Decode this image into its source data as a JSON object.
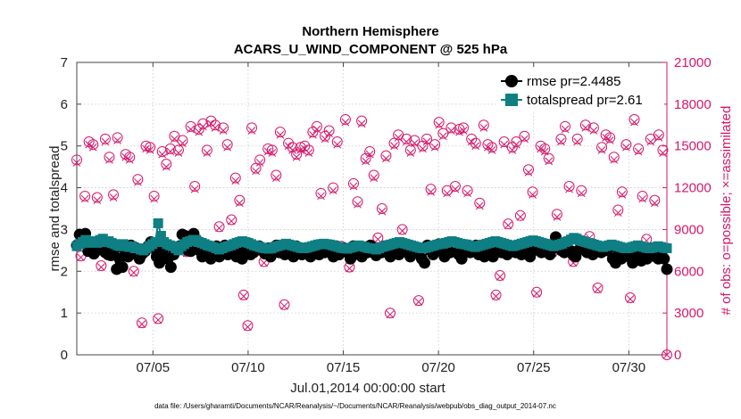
{
  "chart_data": {
    "type": "line",
    "title": "Northern Hemisphere",
    "subtitle": "ACARS_U_WIND_COMPONENT @ 525 hPa",
    "xlabel": "Jul.01,2014 00:00:00 start",
    "ylabel_left": "rmse and totalspread",
    "ylabel_right": "# of obs: o=possible; ×=assimilated",
    "footnote": "data file: /Users/gharamti/Documents/NCAR/Reanalysis/~/Documents/NCAR/Reanalysis/webpub/obs_diag_output_2014-07.nc",
    "x_range_days": [
      1,
      32
    ],
    "ylim_left": [
      0,
      7
    ],
    "ylim_right": [
      0,
      21000
    ],
    "x_ticks": [
      {
        "day": 5,
        "label": "07/05"
      },
      {
        "day": 10,
        "label": "07/10"
      },
      {
        "day": 15,
        "label": "07/15"
      },
      {
        "day": 20,
        "label": "07/20"
      },
      {
        "day": 25,
        "label": "07/25"
      },
      {
        "day": 30,
        "label": "07/30"
      }
    ],
    "y_ticks_left": [
      "0",
      "1",
      "2",
      "3",
      "4",
      "5",
      "6",
      "7"
    ],
    "y_ticks_right": [
      "0",
      "3000",
      "6000",
      "9000",
      "12000",
      "15000",
      "18000",
      "21000"
    ],
    "legend": [
      {
        "name": "rmse pr=2.4485",
        "color": "#000000",
        "marker": "circle"
      },
      {
        "name": "totalspread pr=2.61",
        "color": "#0e7f82",
        "marker": "square"
      }
    ],
    "colors": {
      "rmse": "#000000",
      "spread": "#0e7f82",
      "obs": "#d6166a"
    },
    "rmse_values": [
      2.62,
      2.88,
      2.72,
      2.9,
      2.48,
      2.55,
      2.42,
      2.56,
      2.52,
      2.6,
      2.45,
      2.4,
      2.38,
      2.5,
      2.05,
      2.3,
      2.1,
      2.5,
      2.35,
      2.62,
      2.42,
      2.55,
      2.3,
      2.42,
      2.48,
      2.6,
      2.7,
      2.55,
      2.35,
      2.2,
      2.45,
      2.58,
      2.3,
      2.1,
      2.4,
      2.5,
      2.6,
      2.88,
      2.85,
      2.5,
      2.48,
      2.9,
      2.75,
      2.5,
      2.35,
      2.4,
      2.5,
      2.3,
      2.45,
      2.6,
      2.35,
      2.5,
      2.62,
      2.4,
      2.55,
      2.6,
      2.35,
      2.5,
      2.3,
      2.6,
      2.5,
      2.4,
      2.45,
      2.55,
      2.6,
      2.5,
      2.42,
      2.55,
      2.35,
      2.5,
      2.62,
      2.45,
      2.6,
      2.4,
      2.55,
      2.5,
      2.35,
      2.6,
      2.5,
      2.4,
      2.55,
      2.45,
      2.35,
      2.58,
      2.5,
      2.4,
      2.62,
      2.45,
      2.55,
      2.5,
      2.35,
      2.6,
      2.4,
      2.5,
      2.55,
      2.45,
      2.3,
      2.6,
      2.5,
      2.4,
      2.35,
      2.55,
      2.45,
      2.62,
      2.5,
      2.38,
      2.55,
      2.45,
      2.6,
      2.5,
      2.35,
      2.62,
      2.55,
      2.4,
      2.5,
      2.6,
      2.45,
      2.35,
      2.55,
      2.5,
      2.45,
      2.3,
      2.2,
      2.62,
      2.5,
      2.4,
      2.6,
      2.65,
      2.5,
      2.35,
      2.55,
      2.45,
      2.6,
      2.5,
      2.4,
      2.3,
      2.55,
      2.6,
      2.45,
      2.5,
      2.62,
      2.4,
      2.55,
      2.35,
      2.5,
      2.45,
      2.35,
      2.55,
      2.6,
      2.45,
      2.5,
      2.4,
      2.6,
      2.5,
      2.45,
      2.55,
      2.4,
      2.6,
      2.5,
      2.35,
      2.55,
      2.62,
      2.5,
      2.45,
      2.6,
      2.5,
      2.4,
      2.55,
      2.82,
      2.6,
      2.5,
      2.45,
      2.6,
      2.5,
      2.4,
      2.35,
      2.5,
      2.55,
      2.6,
      2.45,
      2.5,
      2.4,
      2.6,
      2.5,
      2.45,
      2.55,
      2.5,
      2.6,
      2.3,
      2.2,
      2.45,
      2.3,
      2.35,
      2.5,
      2.4,
      2.2,
      2.3,
      2.35,
      2.25,
      2.45,
      2.3,
      2.4,
      2.5,
      2.35,
      2.3,
      2.45,
      2.3,
      2.05
    ],
    "spread_values": [
      2.6,
      2.65,
      2.7,
      2.75,
      2.68,
      2.7,
      2.72,
      2.68,
      2.75,
      2.78,
      2.7,
      2.72,
      2.68,
      2.65,
      2.62,
      2.6,
      2.65,
      2.6,
      2.58,
      2.6,
      2.55,
      2.55,
      2.52,
      2.5,
      2.55,
      2.6,
      2.65,
      2.7,
      3.15,
      2.85,
      2.7,
      2.65,
      2.62,
      2.6,
      2.55,
      2.5,
      2.6,
      2.65,
      2.7,
      2.72,
      2.75,
      2.75,
      2.7,
      2.68,
      2.65,
      2.62,
      2.6,
      2.58,
      2.55,
      2.52,
      2.55,
      2.58,
      2.6,
      2.62,
      2.65,
      2.68,
      2.7,
      2.72,
      2.7,
      2.68,
      2.65,
      2.62,
      2.6,
      2.58,
      2.56,
      2.55,
      2.54,
      2.55,
      2.58,
      2.6,
      2.62,
      2.64,
      2.66,
      2.64,
      2.62,
      2.6,
      2.58,
      2.56,
      2.55,
      2.56,
      2.58,
      2.6,
      2.62,
      2.64,
      2.65,
      2.66,
      2.65,
      2.64,
      2.62,
      2.6,
      2.58,
      2.56,
      2.55,
      2.54,
      2.56,
      2.58,
      2.6,
      2.62,
      2.6,
      2.58,
      2.56,
      2.55,
      2.54,
      2.52,
      2.55,
      2.58,
      2.6,
      2.62,
      2.64,
      2.66,
      2.68,
      2.7,
      2.68,
      2.66,
      2.64,
      2.62,
      2.6,
      2.58,
      2.56,
      2.55,
      2.56,
      2.58,
      2.6,
      2.62,
      2.64,
      2.65,
      2.66,
      2.68,
      2.7,
      2.72,
      2.7,
      2.68,
      2.66,
      2.65,
      2.64,
      2.62,
      2.6,
      2.58,
      2.6,
      2.62,
      2.64,
      2.66,
      2.68,
      2.7,
      2.72,
      2.7,
      2.68,
      2.66,
      2.64,
      2.62,
      2.6,
      2.62,
      2.64,
      2.66,
      2.68,
      2.7,
      2.72,
      2.74,
      2.72,
      2.7,
      2.68,
      2.66,
      2.64,
      2.62,
      2.6,
      2.62,
      2.64,
      2.66,
      2.7,
      2.72,
      2.76,
      2.8,
      2.78,
      2.74,
      2.72,
      2.7,
      2.68,
      2.66,
      2.64,
      2.62,
      2.6,
      2.58,
      2.6,
      2.62,
      2.64,
      2.62,
      2.6,
      2.58,
      2.56,
      2.55,
      2.56,
      2.58,
      2.6,
      2.62,
      2.6,
      2.58,
      2.56,
      2.55,
      2.56,
      2.58,
      2.6,
      2.58,
      2.56,
      2.55
    ],
    "obs_possible": [
      14000,
      7100,
      11400,
      15300,
      15100,
      11300,
      6400,
      15500,
      14200,
      11500,
      15600,
      7500,
      14400,
      14200,
      6000,
      12600,
      2300,
      15000,
      14900,
      11400,
      2600,
      14600,
      13700,
      14800,
      15700,
      14700,
      15400,
      7400,
      16400,
      12100,
      16200,
      16600,
      14700,
      16800,
      16500,
      9200,
      16300,
      15100,
      9700,
      12700,
      11100,
      4300,
      2100,
      16300,
      13400,
      14000,
      6700,
      14800,
      14700,
      12900,
      16000,
      3600,
      15200,
      14900,
      14400,
      14900,
      15000,
      14700,
      16000,
      16400,
      11600,
      15700,
      16100,
      12000,
      15300,
      7800,
      16900,
      6300,
      12300,
      11000,
      16800,
      14100,
      14600,
      12900,
      8400,
      10500,
      14300,
      3000,
      15200,
      15800,
      9000,
      15500,
      14700,
      15400,
      3900,
      15000,
      15500,
      11900,
      15100,
      16700,
      15900,
      11800,
      16300,
      12100,
      16200,
      16300,
      11800,
      15500,
      15200,
      10900,
      16500,
      15100,
      14900,
      4300,
      5700,
      15300,
      9400,
      14900,
      15300,
      10000,
      15700,
      13300,
      11700,
      4500,
      15000,
      14800,
      14100,
      7400,
      10100,
      15500,
      16400,
      12100,
      6700,
      15500,
      11800,
      16500,
      8500,
      16300,
      4800,
      14900,
      15800,
      15600,
      14200,
      10400,
      11700,
      15100,
      4100,
      16900,
      14800,
      11400,
      8300,
      15500,
      11100,
      15800,
      14700,
      0
    ],
    "obs_assimilated": [
      13800,
      7000,
      11200,
      15100,
      14900,
      11100,
      6300,
      15300,
      14000,
      11300,
      15400,
      7400,
      14200,
      14000,
      5900,
      12400,
      2200,
      14800,
      14700,
      11200,
      2500,
      14400,
      13500,
      14600,
      15500,
      14500,
      15200,
      7300,
      16200,
      11900,
      16000,
      16400,
      14500,
      16600,
      16300,
      9100,
      16100,
      14900,
      9600,
      12500,
      10900,
      4200,
      2000,
      16100,
      13200,
      13800,
      6600,
      14600,
      14500,
      12700,
      15800,
      3500,
      15000,
      14700,
      14200,
      14700,
      14800,
      14500,
      15800,
      16200,
      11400,
      15500,
      15900,
      11800,
      15100,
      7700,
      16700,
      6200,
      12100,
      10800,
      16600,
      13900,
      14400,
      12700,
      8300,
      10300,
      14100,
      2900,
      15000,
      15600,
      8900,
      15300,
      14500,
      15200,
      3800,
      14800,
      15300,
      11700,
      14900,
      16500,
      15700,
      11600,
      16100,
      11900,
      16000,
      16100,
      11600,
      15300,
      15000,
      10700,
      16300,
      14900,
      14700,
      4200,
      5600,
      15100,
      9300,
      14700,
      15100,
      9900,
      15500,
      13100,
      11500,
      4400,
      14800,
      14600,
      13900,
      7300,
      9900,
      15300,
      16200,
      11900,
      6600,
      15300,
      11600,
      16300,
      8400,
      16100,
      4700,
      14700,
      15600,
      15400,
      14000,
      10200,
      11500,
      14900,
      4000,
      16700,
      14600,
      11200,
      8200,
      15300,
      10900,
      15600,
      14500,
      0
    ]
  }
}
